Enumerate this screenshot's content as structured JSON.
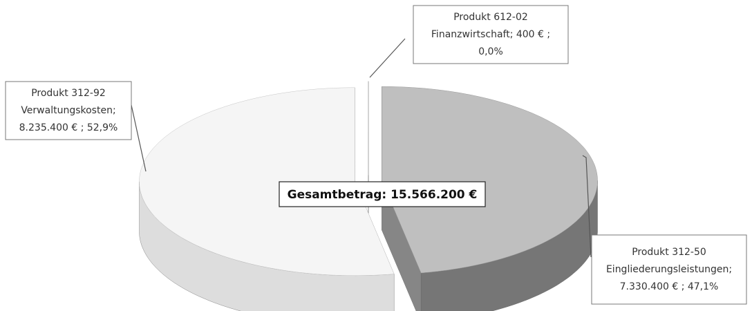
{
  "chart_data": {
    "type": "pie3d",
    "categories": [
      "Produkt 312-50 Eingliederungsleistungen",
      "Produkt 312-92 Verwaltungskosten",
      "Produkt 612-02 Finanzwirtschaft"
    ],
    "values": [
      7330400,
      8235400,
      400
    ],
    "percentages": [
      47.1,
      52.9,
      0.0
    ],
    "data_labels": [
      [
        "Produkt 312-50",
        "Eingliederungsleistungen;",
        "7.330.400 € ; 47,1%"
      ],
      [
        "Produkt 312-92",
        "Verwaltungskosten;",
        "8.235.400 € ; 52,9%"
      ],
      [
        "Produkt 612-02",
        "Finanzwirtschaft;  400 € ;",
        "0,0%"
      ]
    ],
    "colors": [
      "#bfbfbf",
      "#f5f5f5",
      "#d9d9d9"
    ],
    "total": 15566200,
    "total_label": "Gesamtbetrag: 15.566.200 €"
  }
}
